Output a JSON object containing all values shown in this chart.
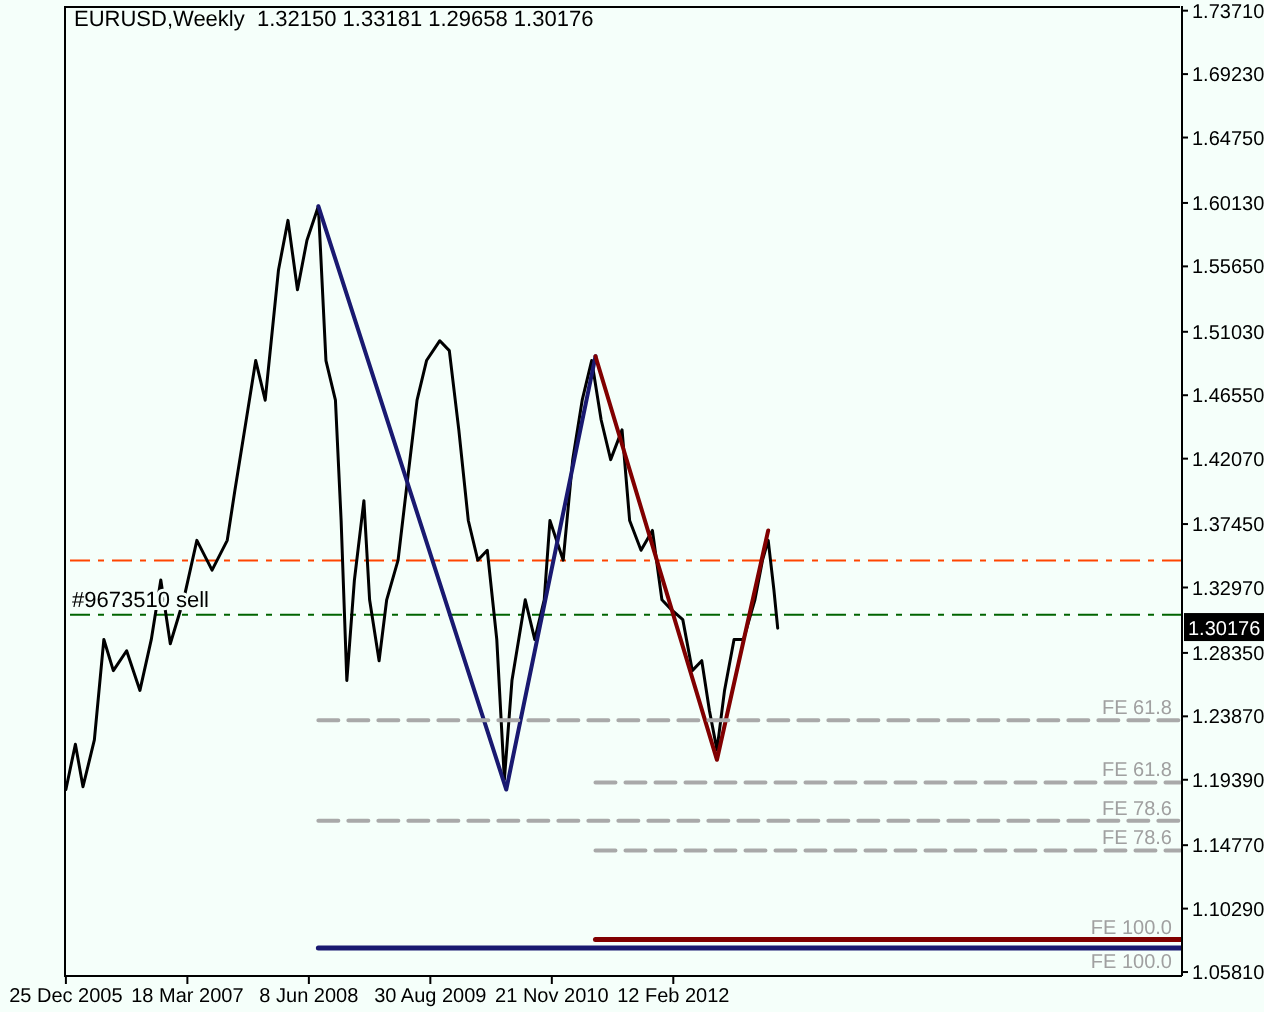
{
  "chart_data": {
    "type": "line",
    "title": "EURUSD,Weekly  1.32150 1.33181 1.29658 1.30176",
    "marker": "none",
    "xlim": [
      "2005-12-18",
      "2017-04-02"
    ],
    "xticks": [
      {
        "value": "2005-12-25",
        "label": "25 Dec 2005"
      },
      {
        "value": "2007-03-18",
        "label": "18 Mar 2007"
      },
      {
        "value": "2008-06-08",
        "label": "8 Jun 2008"
      },
      {
        "value": "2009-08-30",
        "label": "30 Aug 2009"
      },
      {
        "value": "2010-11-21",
        "label": "21 Nov 2010"
      },
      {
        "value": "2012-02-12",
        "label": "12 Feb 2012"
      }
    ],
    "ylim": [
      1.0553,
      1.7404
    ],
    "yticks": [
      {
        "value": 1.7371,
        "label": "1.73710"
      },
      {
        "value": 1.6923,
        "label": "1.69230"
      },
      {
        "value": 1.6475,
        "label": "1.64750"
      },
      {
        "value": 1.6013,
        "label": "1.60130"
      },
      {
        "value": 1.5565,
        "label": "1.55650"
      },
      {
        "value": 1.5103,
        "label": "1.51030"
      },
      {
        "value": 1.4655,
        "label": "1.46550"
      },
      {
        "value": 1.4207,
        "label": "1.42070"
      },
      {
        "value": 1.3745,
        "label": "1.37450"
      },
      {
        "value": 1.3297,
        "label": "1.32970"
      },
      {
        "value": 1.2835,
        "label": "1.28350"
      },
      {
        "value": 1.2387,
        "label": "1.23870"
      },
      {
        "value": 1.1939,
        "label": "1.19390"
      },
      {
        "value": 1.1477,
        "label": "1.14770"
      },
      {
        "value": 1.1029,
        "label": "1.10290"
      },
      {
        "value": 1.0581,
        "label": "1.05810"
      }
    ],
    "series": [
      {
        "color": "#000000",
        "x": [
          "2005-12-25",
          "2006-01-29",
          "2006-02-26",
          "2006-04-09",
          "2006-05-14",
          "2006-06-18",
          "2006-08-06",
          "2006-09-24",
          "2006-11-05",
          "2006-12-10",
          "2007-01-14",
          "2007-03-04",
          "2007-04-22",
          "2007-06-17",
          "2007-08-12",
          "2007-09-09",
          "2007-10-21",
          "2007-11-25",
          "2007-12-30",
          "2008-02-17",
          "2008-03-23",
          "2008-04-27",
          "2008-06-01",
          "2008-07-13",
          "2008-08-10",
          "2008-09-14",
          "2008-10-05",
          "2008-10-26",
          "2008-11-23",
          "2008-12-28",
          "2009-01-18",
          "2009-02-22",
          "2009-03-22",
          "2009-05-03",
          "2009-06-07",
          "2009-07-12",
          "2009-08-16",
          "2009-10-04",
          "2009-11-08",
          "2009-12-13",
          "2010-01-17",
          "2010-02-21",
          "2010-03-28",
          "2010-05-02",
          "2010-05-30",
          "2010-06-27",
          "2010-08-15",
          "2010-09-19",
          "2010-10-24",
          "2010-11-14",
          "2011-01-02",
          "2011-02-06",
          "2011-03-13",
          "2011-04-17",
          "2011-05-22",
          "2011-06-26",
          "2011-08-07",
          "2011-09-04",
          "2011-10-16",
          "2011-11-27",
          "2012-01-01",
          "2012-02-05",
          "2012-03-18",
          "2012-04-22",
          "2012-05-27",
          "2012-06-24",
          "2012-07-22",
          "2012-08-19",
          "2012-09-23",
          "2012-10-28",
          "2012-12-09",
          "2013-01-06",
          "2013-01-27",
          "2013-02-17",
          "2013-03-03"
        ],
        "values": [
          1.187,
          1.219,
          1.189,
          1.222,
          1.293,
          1.271,
          1.285,
          1.257,
          1.293,
          1.335,
          1.29,
          1.321,
          1.363,
          1.342,
          1.363,
          1.398,
          1.448,
          1.49,
          1.462,
          1.554,
          1.589,
          1.54,
          1.575,
          1.599,
          1.49,
          1.462,
          1.377,
          1.264,
          1.335,
          1.391,
          1.321,
          1.278,
          1.321,
          1.349,
          1.406,
          1.462,
          1.49,
          1.504,
          1.497,
          1.441,
          1.377,
          1.349,
          1.356,
          1.293,
          1.194,
          1.264,
          1.321,
          1.293,
          1.321,
          1.377,
          1.349,
          1.42,
          1.462,
          1.49,
          1.448,
          1.42,
          1.441,
          1.377,
          1.356,
          1.37,
          1.321,
          1.314,
          1.307,
          1.271,
          1.278,
          1.243,
          1.215,
          1.257,
          1.293,
          1.293,
          1.321,
          1.349,
          1.363,
          1.328,
          1.301
        ]
      },
      {
        "color": "#191970",
        "x": [
          "2008-07-13",
          "2010-06-06",
          "2011-05-01"
        ],
        "values": [
          1.599,
          1.187,
          1.493
        ]
      },
      {
        "color": "#800000",
        "x": [
          "2011-05-01",
          "2012-07-22",
          "2013-01-27"
        ],
        "values": [
          1.493,
          1.208,
          1.37
        ]
      },
      {
        "name": "FE 61.8",
        "color": "#a9a9a9",
        "line_style": "dashed",
        "x": [
          "2008-07-13",
          "2017-03-26"
        ],
        "values": [
          1.236,
          1.236
        ]
      },
      {
        "name": "FE 61.8",
        "color": "#a9a9a9",
        "line_style": "dashed",
        "x": [
          "2011-05-01",
          "2017-03-26"
        ],
        "values": [
          1.192,
          1.192
        ]
      },
      {
        "name": "FE 78.6",
        "color": "#a9a9a9",
        "line_style": "dashed",
        "x": [
          "2008-07-13",
          "2017-03-26"
        ],
        "values": [
          1.165,
          1.165
        ]
      },
      {
        "name": "FE 78.6",
        "color": "#a9a9a9",
        "line_style": "dashed",
        "x": [
          "2011-05-01",
          "2017-03-26"
        ],
        "values": [
          1.144,
          1.144
        ]
      },
      {
        "name": "FE 100.0",
        "color": "#800000",
        "x": [
          "2011-05-01",
          "2017-04-02"
        ],
        "values": [
          1.081,
          1.081
        ]
      },
      {
        "name": "FE 100.0",
        "color": "#191970",
        "x": [
          "2008-07-13",
          "2017-04-02"
        ],
        "values": [
          1.075,
          1.075
        ]
      }
    ],
    "ref_lines": [
      {
        "axis": "y",
        "value": 1.3487,
        "color": "#ff4500",
        "line_style": "dashed"
      },
      {
        "axis": "y",
        "value": 1.3105,
        "color": "#006400",
        "line_style": "dashed",
        "label": "#9673510 sell"
      }
    ],
    "annotations": [
      {
        "text": "1.30176",
        "y": 1.30176
      }
    ]
  }
}
